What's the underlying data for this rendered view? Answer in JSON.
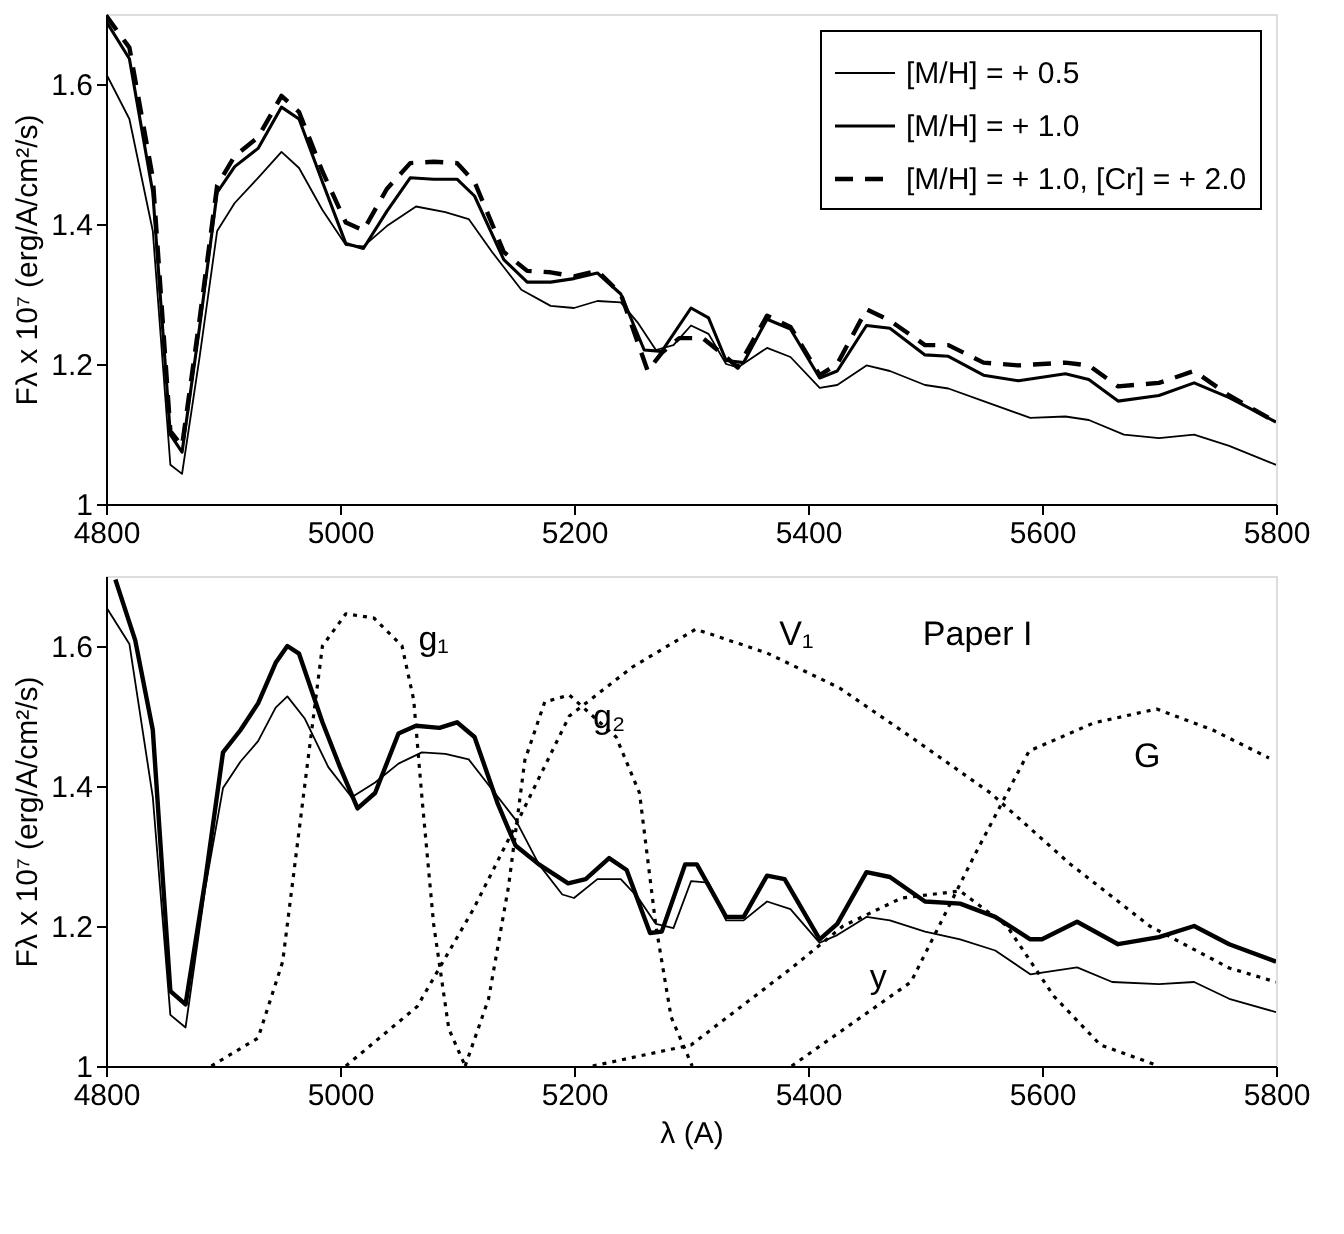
{
  "chart_data": [
    {
      "type": "line",
      "ylabel": "Fλ x 10⁷ (erg/A/cm²/s)",
      "xlim": [
        4800,
        5800
      ],
      "xticks": [
        4800,
        5000,
        5200,
        5400,
        5600,
        5800
      ],
      "ylim": [
        1,
        1.7
      ],
      "yticks": [
        1,
        1.2,
        1.4,
        1.6
      ],
      "grid": false,
      "legend": "top right",
      "series": [
        {
          "name": "[M/H] = + 0.5",
          "color": "#000000",
          "line_style": "solid",
          "x": [
            4800,
            4820,
            4840,
            4855,
            4865,
            4880,
            4895,
            4910,
            4930,
            4950,
            4965,
            4985,
            5005,
            5020,
            5040,
            5065,
            5090,
            5110,
            5130,
            5155,
            5180,
            5200,
            5220,
            5240,
            5255,
            5270,
            5285,
            5300,
            5315,
            5330,
            5340,
            5365,
            5385,
            5410,
            5425,
            5450,
            5470,
            5500,
            5520,
            5550,
            5590,
            5620,
            5640,
            5670,
            5700,
            5730,
            5760,
            5800
          ],
          "values": [
            1.615,
            1.55,
            1.39,
            1.056,
            1.043,
            1.21,
            1.39,
            1.43,
            1.466,
            1.503,
            1.48,
            1.42,
            1.37,
            1.368,
            1.397,
            1.425,
            1.417,
            1.407,
            1.36,
            1.306,
            1.283,
            1.28,
            1.29,
            1.288,
            1.258,
            1.22,
            1.227,
            1.255,
            1.243,
            1.2,
            1.195,
            1.223,
            1.21,
            1.166,
            1.17,
            1.198,
            1.19,
            1.17,
            1.165,
            1.147,
            1.123,
            1.125,
            1.12,
            1.099,
            1.094,
            1.099,
            1.083,
            1.056
          ]
        },
        {
          "name": "[M/H] = + 1.0",
          "color": "#000000",
          "line_style": "solid",
          "x": [
            4800,
            4820,
            4840,
            4855,
            4865,
            4880,
            4895,
            4910,
            4930,
            4950,
            4965,
            4985,
            5005,
            5020,
            5040,
            5060,
            5080,
            5100,
            5115,
            5140,
            5160,
            5180,
            5200,
            5220,
            5240,
            5260,
            5275,
            5300,
            5315,
            5330,
            5345,
            5365,
            5385,
            5410,
            5425,
            5450,
            5470,
            5500,
            5520,
            5550,
            5580,
            5620,
            5640,
            5665,
            5700,
            5730,
            5760,
            5800
          ],
          "values": [
            1.69,
            1.636,
            1.445,
            1.099,
            1.074,
            1.253,
            1.445,
            1.482,
            1.508,
            1.567,
            1.55,
            1.46,
            1.372,
            1.365,
            1.418,
            1.466,
            1.464,
            1.464,
            1.44,
            1.349,
            1.317,
            1.317,
            1.322,
            1.33,
            1.3,
            1.22,
            1.218,
            1.28,
            1.266,
            1.205,
            1.202,
            1.264,
            1.25,
            1.18,
            1.19,
            1.255,
            1.251,
            1.213,
            1.211,
            1.184,
            1.176,
            1.186,
            1.178,
            1.147,
            1.155,
            1.173,
            1.152,
            1.117
          ]
        },
        {
          "name": "[M/H] = + 1.0, [Cr] = + 2.0",
          "color": "#000000",
          "line_style": "dashed",
          "x": [
            4800,
            4820,
            4840,
            4855,
            4865,
            4880,
            4895,
            4910,
            4930,
            4950,
            4965,
            4985,
            5005,
            5020,
            5040,
            5060,
            5080,
            5100,
            5115,
            5140,
            5160,
            5180,
            5200,
            5220,
            5240,
            5263,
            5275,
            5290,
            5310,
            5330,
            5340,
            5365,
            5385,
            5410,
            5425,
            5450,
            5470,
            5500,
            5520,
            5550,
            5580,
            5620,
            5640,
            5665,
            5700,
            5730,
            5760,
            5800
          ],
          "values": [
            1.698,
            1.652,
            1.466,
            1.104,
            1.083,
            1.264,
            1.455,
            1.497,
            1.524,
            1.583,
            1.56,
            1.475,
            1.402,
            1.391,
            1.45,
            1.487,
            1.489,
            1.487,
            1.46,
            1.36,
            1.333,
            1.331,
            1.325,
            1.333,
            1.3,
            1.19,
            1.216,
            1.237,
            1.237,
            1.21,
            1.195,
            1.269,
            1.253,
            1.184,
            1.2,
            1.278,
            1.262,
            1.227,
            1.227,
            1.202,
            1.198,
            1.202,
            1.198,
            1.168,
            1.173,
            1.19,
            1.155,
            1.117
          ]
        }
      ]
    },
    {
      "type": "line",
      "xlabel": "λ (A)",
      "ylabel": "Fλ x 10⁷ (erg/A/cm²/s)",
      "xlim": [
        4800,
        5800
      ],
      "xticks": [
        4800,
        5000,
        5200,
        5400,
        5600,
        5800
      ],
      "ylim": [
        1,
        1.7
      ],
      "yticks": [
        1,
        1.2,
        1.4,
        1.6
      ],
      "grid": false,
      "annotations": [
        "g₁",
        "g₂",
        "V₁",
        "Paper I",
        "G",
        "y"
      ],
      "series": [
        {
          "color": "#000000",
          "line_style": "solid",
          "x": [
            4800,
            4820,
            4840,
            4855,
            4868,
            4885,
            4900,
            4915,
            4930,
            4945,
            4955,
            4970,
            4990,
            5010,
            5030,
            5050,
            5070,
            5090,
            5110,
            5130,
            5150,
            5170,
            5190,
            5200,
            5220,
            5240,
            5255,
            5270,
            5285,
            5300,
            5315,
            5330,
            5345,
            5365,
            5385,
            5410,
            5425,
            5450,
            5470,
            5500,
            5530,
            5560,
            5590,
            5630,
            5660,
            5700,
            5730,
            5760,
            5800
          ],
          "values": [
            1.656,
            1.603,
            1.384,
            1.073,
            1.055,
            1.256,
            1.397,
            1.435,
            1.464,
            1.512,
            1.528,
            1.496,
            1.427,
            1.384,
            1.405,
            1.432,
            1.448,
            1.446,
            1.438,
            1.395,
            1.352,
            1.288,
            1.245,
            1.24,
            1.267,
            1.267,
            1.24,
            1.203,
            1.197,
            1.264,
            1.262,
            1.208,
            1.208,
            1.235,
            1.224,
            1.176,
            1.187,
            1.213,
            1.208,
            1.192,
            1.181,
            1.165,
            1.131,
            1.141,
            1.12,
            1.117,
            1.12,
            1.096,
            1.077
          ]
        },
        {
          "color": "#000000",
          "line_style": "solid",
          "x": [
            4808,
            4825,
            4840,
            4855,
            4868,
            4885,
            4900,
            4915,
            4930,
            4945,
            4955,
            4965,
            4985,
            5000,
            5015,
            5030,
            5050,
            5065,
            5085,
            5100,
            5115,
            5135,
            5150,
            5170,
            5195,
            5210,
            5230,
            5245,
            5265,
            5275,
            5295,
            5305,
            5330,
            5345,
            5365,
            5380,
            5410,
            5425,
            5450,
            5470,
            5500,
            5530,
            5560,
            5590,
            5600,
            5630,
            5665,
            5700,
            5730,
            5760,
            5800
          ],
          "values": [
            1.695,
            1.608,
            1.48,
            1.107,
            1.088,
            1.267,
            1.448,
            1.48,
            1.518,
            1.576,
            1.6,
            1.589,
            1.491,
            1.427,
            1.368,
            1.39,
            1.475,
            1.486,
            1.483,
            1.491,
            1.47,
            1.374,
            1.315,
            1.288,
            1.261,
            1.267,
            1.297,
            1.28,
            1.19,
            1.192,
            1.288,
            1.288,
            1.213,
            1.213,
            1.272,
            1.267,
            1.181,
            1.203,
            1.277,
            1.27,
            1.235,
            1.232,
            1.213,
            1.181,
            1.181,
            1.206,
            1.174,
            1.184,
            1.2,
            1.174,
            1.149
          ]
        },
        {
          "color": "#000000",
          "line_style": "dotted",
          "x": [
            4890,
            4930,
            4951,
            4971,
            4985,
            5005,
            5029,
            5053,
            5063,
            5070,
            5080,
            5093,
            5107
          ],
          "values": [
            1.0,
            1.04,
            1.149,
            1.416,
            1.6,
            1.646,
            1.64,
            1.6,
            1.523,
            1.384,
            1.203,
            1.053,
            1.0
          ]
        },
        {
          "color": "#000000",
          "line_style": "dotted",
          "x": [
            5107,
            5127,
            5144,
            5158,
            5175,
            5196,
            5236,
            5256,
            5270,
            5283,
            5301
          ],
          "values": [
            1.0,
            1.096,
            1.256,
            1.437,
            1.52,
            1.53,
            1.47,
            1.39,
            1.2,
            1.07,
            1.0
          ]
        },
        {
          "color": "#000000",
          "line_style": "dotted",
          "x": [
            5005,
            5066,
            5114,
            5155,
            5196,
            5250,
            5304,
            5365,
            5427,
            5488,
            5556,
            5623,
            5692,
            5760,
            5800
          ],
          "values": [
            1.0,
            1.085,
            1.224,
            1.36,
            1.5,
            1.57,
            1.624,
            1.59,
            1.54,
            1.47,
            1.39,
            1.29,
            1.2,
            1.14,
            1.12
          ]
        },
        {
          "color": "#000000",
          "line_style": "dotted",
          "x": [
            5216,
            5300,
            5386,
            5430,
            5480,
            5530,
            5570,
            5610,
            5650,
            5700
          ],
          "values": [
            1.0,
            1.03,
            1.14,
            1.2,
            1.24,
            1.25,
            1.2,
            1.1,
            1.03,
            1.0
          ]
        },
        {
          "color": "#000000",
          "line_style": "dotted",
          "x": [
            5386,
            5488,
            5542,
            5589,
            5644,
            5698,
            5746,
            5794
          ],
          "values": [
            1.0,
            1.12,
            1.3,
            1.45,
            1.49,
            1.51,
            1.48,
            1.44
          ]
        }
      ]
    }
  ]
}
